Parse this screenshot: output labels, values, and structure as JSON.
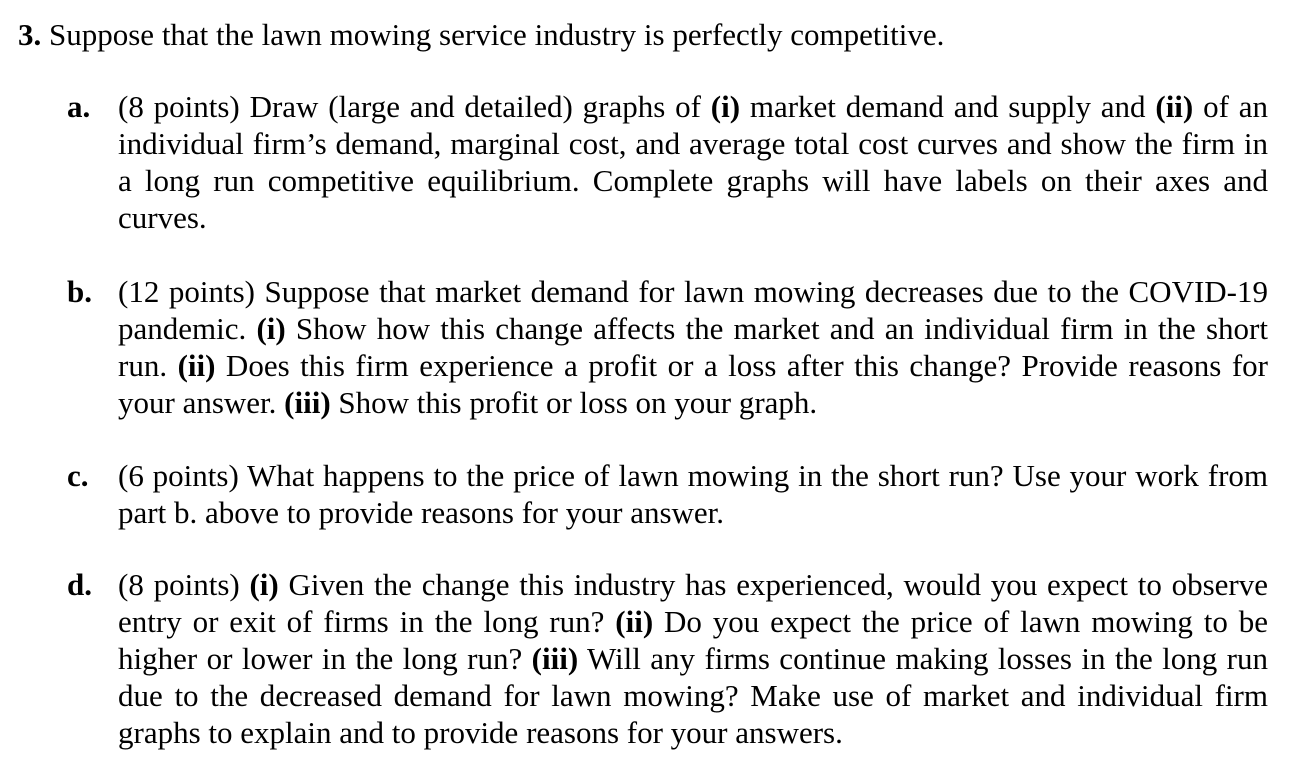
{
  "question": {
    "number": "3.",
    "text": " Suppose that the lawn mowing service industry is perfectly competitive."
  },
  "parts": [
    {
      "letter": "a.",
      "segments": [
        {
          "t": "(8 points) Draw (large and detailed) graphs of ",
          "b": false
        },
        {
          "t": "(i)",
          "b": true
        },
        {
          "t": " market demand and supply and ",
          "b": false
        },
        {
          "t": "(ii)",
          "b": true
        },
        {
          "t": " of an individual firm’s demand, marginal cost, and average total cost curves and show the firm in a long run competitive equilibrium. Complete graphs will have labels on their axes and curves.",
          "b": false
        }
      ]
    },
    {
      "letter": "b.",
      "segments": [
        {
          "t": "(12 points) Suppose that market demand for lawn mowing decreases due to the COVID-19 pandemic. ",
          "b": false
        },
        {
          "t": "(i)",
          "b": true
        },
        {
          "t": " Show how this change affects the market and an individual firm in the short run. ",
          "b": false
        },
        {
          "t": "(ii)",
          "b": true
        },
        {
          "t": " Does this firm experience a profit or a loss after this change? Provide reasons for your answer. ",
          "b": false
        },
        {
          "t": "(iii)",
          "b": true
        },
        {
          "t": " Show this profit or loss on your graph.",
          "b": false
        }
      ]
    },
    {
      "letter": "c.",
      "segments": [
        {
          "t": "(6 points) What happens to the price of lawn mowing in the short run? Use your work from part b. above to provide reasons for your answer.",
          "b": false
        }
      ]
    },
    {
      "letter": "d.",
      "segments": [
        {
          "t": "(8 points) ",
          "b": false
        },
        {
          "t": "(i)",
          "b": true
        },
        {
          "t": " Given the change this industry has experienced, would you expect to observe entry or exit of firms in the long run? ",
          "b": false
        },
        {
          "t": "(ii)",
          "b": true
        },
        {
          "t": " Do you expect the price of lawn mowing to be higher or lower in the long run? ",
          "b": false
        },
        {
          "t": "(iii)",
          "b": true
        },
        {
          "t": " Will any firms continue making losses in the long run due to the decreased demand for lawn mowing? Make use of market and individual firm graphs to explain and to provide reasons for your answers.",
          "b": false
        }
      ]
    }
  ]
}
